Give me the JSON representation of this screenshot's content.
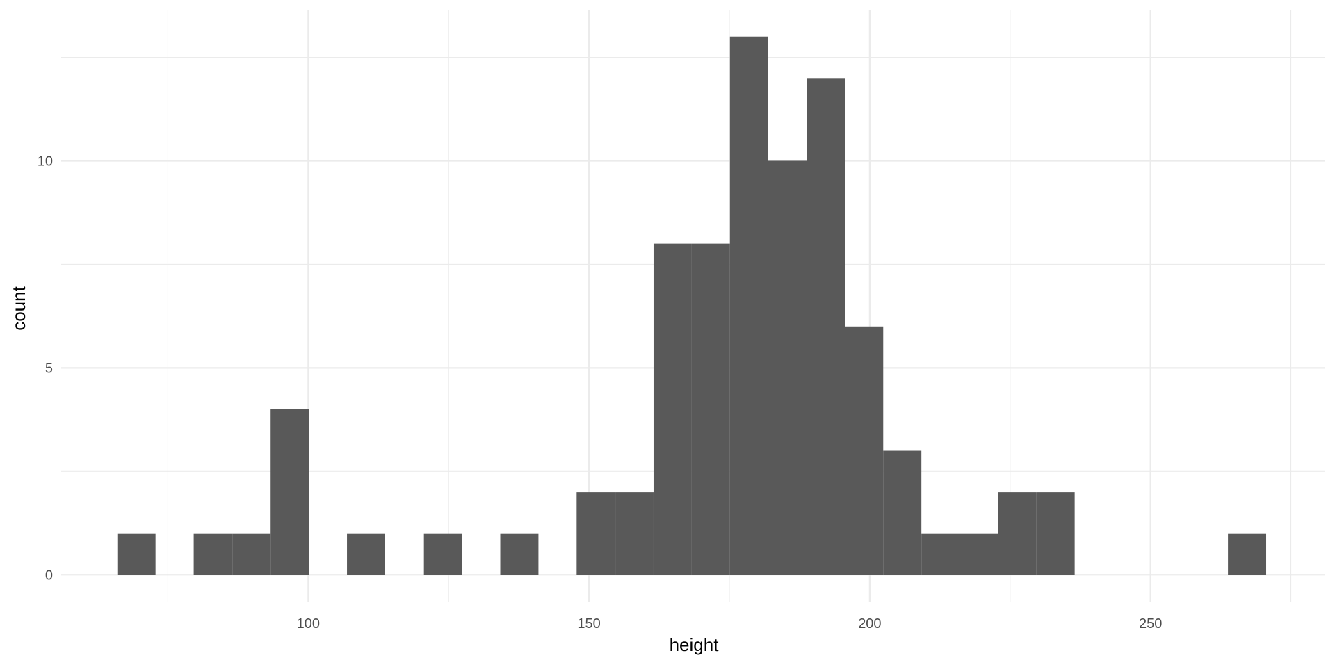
{
  "chart_data": {
    "type": "bar",
    "subtype": "histogram",
    "xlabel": "height",
    "ylabel": "count",
    "xlim": [
      56,
      281
    ],
    "ylim": [
      -0.65,
      13.65
    ],
    "x_major_ticks": [
      100,
      150,
      200,
      250
    ],
    "x_minor_ticks": [
      75,
      125,
      175,
      225,
      275
    ],
    "y_major_ticks": [
      0,
      5,
      10
    ],
    "y_minor_ticks": [
      2.5,
      7.5,
      12.5
    ],
    "x_tick_labels": [
      "100",
      "150",
      "200",
      "250"
    ],
    "y_tick_labels": [
      "0",
      "5",
      "10"
    ],
    "grid": true,
    "bar_color": "#595959",
    "bins": [
      {
        "x0": 66.0,
        "x1": 72.8,
        "count": 1
      },
      {
        "x0": 79.6,
        "x1": 86.5,
        "count": 1
      },
      {
        "x0": 86.5,
        "x1": 93.3,
        "count": 1
      },
      {
        "x0": 93.3,
        "x1": 100.1,
        "count": 4
      },
      {
        "x0": 106.9,
        "x1": 113.7,
        "count": 1
      },
      {
        "x0": 120.6,
        "x1": 127.4,
        "count": 1
      },
      {
        "x0": 134.2,
        "x1": 141.0,
        "count": 1
      },
      {
        "x0": 147.8,
        "x1": 154.7,
        "count": 2
      },
      {
        "x0": 154.7,
        "x1": 161.5,
        "count": 2
      },
      {
        "x0": 161.5,
        "x1": 168.3,
        "count": 8
      },
      {
        "x0": 168.3,
        "x1": 175.1,
        "count": 8
      },
      {
        "x0": 175.1,
        "x1": 181.9,
        "count": 13
      },
      {
        "x0": 181.9,
        "x1": 188.8,
        "count": 10
      },
      {
        "x0": 188.8,
        "x1": 195.6,
        "count": 12
      },
      {
        "x0": 195.6,
        "x1": 202.4,
        "count": 6
      },
      {
        "x0": 202.4,
        "x1": 209.2,
        "count": 3
      },
      {
        "x0": 209.2,
        "x1": 216.0,
        "count": 1
      },
      {
        "x0": 216.0,
        "x1": 222.9,
        "count": 1
      },
      {
        "x0": 222.9,
        "x1": 229.7,
        "count": 2
      },
      {
        "x0": 229.7,
        "x1": 236.5,
        "count": 2
      },
      {
        "x0": 263.8,
        "x1": 270.6,
        "count": 1
      }
    ]
  }
}
